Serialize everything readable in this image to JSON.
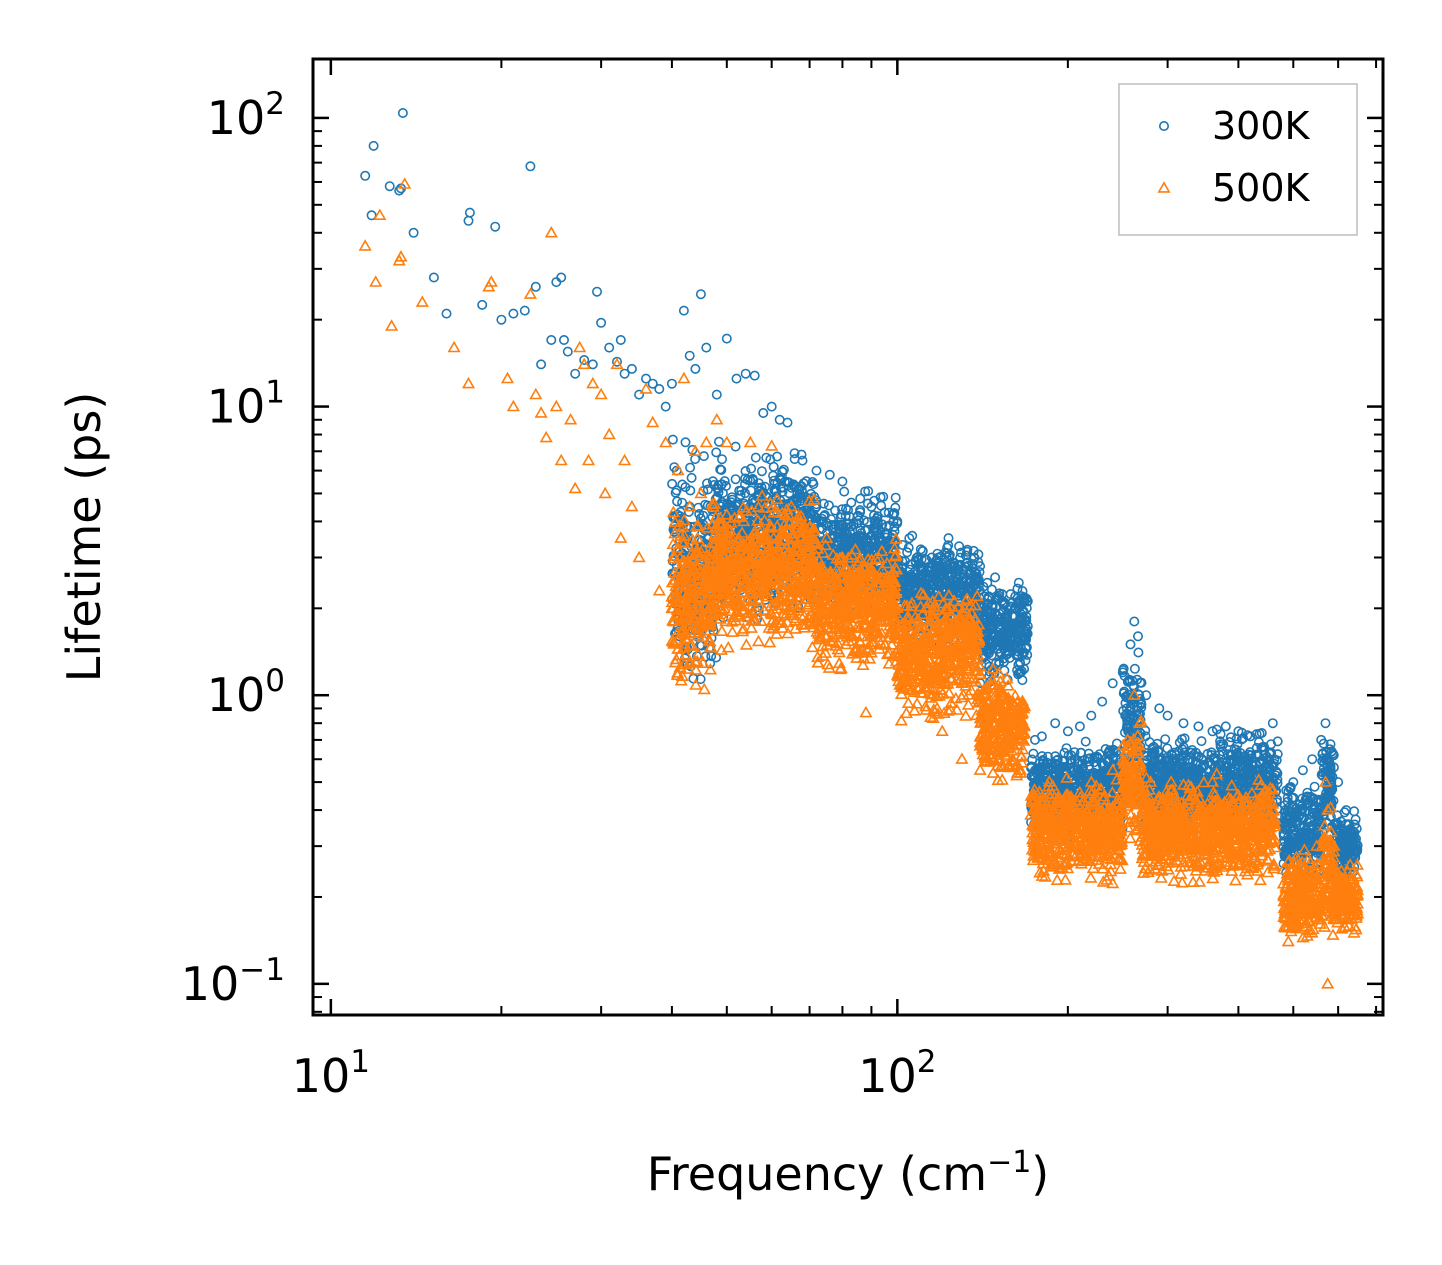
{
  "chart_data": {
    "type": "scatter",
    "title": "",
    "xlabel": "Frequency (cm",
    "xlabel_sup": "−1",
    "xlabel_suffix": ")",
    "ylabel": "Lifetime (ps)",
    "xscale": "log",
    "yscale": "log",
    "xlim": [
      9.3,
      720
    ],
    "ylim": [
      0.078,
      160
    ],
    "x_ticks": [
      {
        "value": 10,
        "base": "10",
        "exp": "1"
      },
      {
        "value": 100,
        "base": "10",
        "exp": "2"
      }
    ],
    "y_ticks": [
      {
        "value": 0.1,
        "base": "10",
        "exp": "−1"
      },
      {
        "value": 1,
        "base": "10",
        "exp": "0"
      },
      {
        "value": 10,
        "base": "10",
        "exp": "1"
      },
      {
        "value": 100,
        "base": "10",
        "exp": "2"
      }
    ],
    "legend_position": "top-right",
    "series": [
      {
        "name": "300K",
        "marker": "circle",
        "color": "#1f77b4",
        "points": [
          [
            11.5,
            63
          ],
          [
            11.9,
            80
          ],
          [
            11.8,
            46
          ],
          [
            12.7,
            58
          ],
          [
            13.2,
            56
          ],
          [
            13.4,
            104
          ],
          [
            13.3,
            57
          ],
          [
            14.0,
            40
          ],
          [
            15.2,
            28
          ],
          [
            16.0,
            21
          ],
          [
            17.5,
            44
          ],
          [
            17.6,
            47
          ],
          [
            18.5,
            22.5
          ],
          [
            19.5,
            42
          ],
          [
            20.0,
            20
          ],
          [
            21.0,
            21
          ],
          [
            22.0,
            21.5
          ],
          [
            22.5,
            68
          ],
          [
            23.0,
            26
          ],
          [
            23.5,
            14
          ],
          [
            24.5,
            17
          ],
          [
            25.0,
            27
          ],
          [
            25.5,
            28
          ],
          [
            25.8,
            17
          ],
          [
            26.2,
            15.5
          ],
          [
            27.0,
            13
          ],
          [
            28.0,
            14.5
          ],
          [
            29.0,
            14
          ],
          [
            29.5,
            25
          ],
          [
            30.0,
            19.5
          ],
          [
            31.0,
            16
          ],
          [
            32.0,
            14.3
          ],
          [
            32.5,
            17
          ],
          [
            33.0,
            13
          ],
          [
            34.0,
            13.5
          ],
          [
            35.0,
            11
          ],
          [
            36.0,
            12.5
          ],
          [
            37.0,
            12
          ],
          [
            38.0,
            11.5
          ],
          [
            39.0,
            10
          ],
          [
            40.0,
            12
          ],
          [
            42.0,
            21.5
          ],
          [
            43.0,
            15
          ],
          [
            44.0,
            13.5
          ],
          [
            45.0,
            24.5
          ],
          [
            46.0,
            16
          ],
          [
            48.0,
            11
          ],
          [
            50.0,
            17.2
          ],
          [
            52.0,
            12.5
          ],
          [
            54.0,
            13
          ],
          [
            56.0,
            12.8
          ],
          [
            58.0,
            9.5
          ],
          [
            60.0,
            10
          ],
          [
            62.0,
            9
          ],
          [
            64.0,
            8.8
          ],
          [
            68.0,
            6.5
          ],
          [
            72.0,
            6
          ],
          [
            76.0,
            5.8
          ],
          [
            80.0,
            5.5
          ],
          [
            86.0,
            4.8
          ],
          [
            90.0,
            4.5
          ],
          [
            95.0,
            4.3
          ],
          [
            100.0,
            4.0
          ],
          [
            105.0,
            3.5
          ],
          [
            110.0,
            3.2
          ],
          [
            115.0,
            3.0
          ],
          [
            120.0,
            2.8
          ],
          [
            125.0,
            2.6
          ],
          [
            130.0,
            2.5
          ],
          [
            135.0,
            2.7
          ],
          [
            140.0,
            2.8
          ],
          [
            145.0,
            2.2
          ],
          [
            150.0,
            1.8
          ],
          [
            155.0,
            1.6
          ],
          [
            160.0,
            1.5
          ],
          [
            165.0,
            1.2
          ],
          [
            175.0,
            0.7
          ],
          [
            180.0,
            0.72
          ],
          [
            190.0,
            0.8
          ],
          [
            200.0,
            0.75
          ],
          [
            210.0,
            0.78
          ],
          [
            220.0,
            0.85
          ],
          [
            230.0,
            0.95
          ],
          [
            240.0,
            1.1
          ],
          [
            250.0,
            1.2
          ],
          [
            258.0,
            1.5
          ],
          [
            262.0,
            1.8
          ],
          [
            266.0,
            1.6
          ],
          [
            275.0,
            1.0
          ],
          [
            290.0,
            0.9
          ],
          [
            300.0,
            0.85
          ],
          [
            320.0,
            0.8
          ],
          [
            340.0,
            0.78
          ],
          [
            360.0,
            0.75
          ],
          [
            380.0,
            0.78
          ],
          [
            400.0,
            0.75
          ],
          [
            420.0,
            0.72
          ],
          [
            440.0,
            0.74
          ],
          [
            460.0,
            0.8
          ],
          [
            500.0,
            0.5
          ],
          [
            520.0,
            0.55
          ],
          [
            540.0,
            0.6
          ],
          [
            560.0,
            0.7
          ],
          [
            570.0,
            0.8
          ],
          [
            580.0,
            0.65
          ],
          [
            600.0,
            0.5
          ],
          [
            620.0,
            0.4
          ],
          [
            640.0,
            0.32
          ]
        ],
        "bands": [
          {
            "x": [
              40,
              48
            ],
            "y": [
              0.9,
              9.0
            ]
          },
          {
            "x": [
              48,
              72
            ],
            "y": [
              1.6,
              8.0
            ]
          },
          {
            "x": [
              72,
              100
            ],
            "y": [
              1.7,
              5.5
            ]
          },
          {
            "x": [
              100,
              140
            ],
            "y": [
              1.4,
              3.8
            ]
          },
          {
            "x": [
              140,
              170
            ],
            "y": [
              1.0,
              2.8
            ]
          },
          {
            "x": [
              172,
              250
            ],
            "y": [
              0.3,
              0.75
            ]
          },
          {
            "x": [
              250,
              270
            ],
            "y": [
              0.4,
              1.6
            ]
          },
          {
            "x": [
              270,
              470
            ],
            "y": [
              0.3,
              0.8
            ]
          },
          {
            "x": [
              480,
              560
            ],
            "y": [
              0.2,
              0.58
            ]
          },
          {
            "x": [
              560,
              590
            ],
            "y": [
              0.3,
              0.8
            ]
          },
          {
            "x": [
              590,
              650
            ],
            "y": [
              0.22,
              0.42
            ]
          }
        ]
      },
      {
        "name": "500K",
        "marker": "triangle",
        "color": "#ff7f0e",
        "points": [
          [
            11.5,
            36
          ],
          [
            12.0,
            27
          ],
          [
            12.2,
            46
          ],
          [
            12.8,
            19
          ],
          [
            13.2,
            32
          ],
          [
            13.5,
            59
          ],
          [
            13.3,
            33
          ],
          [
            14.5,
            23
          ],
          [
            16.5,
            16
          ],
          [
            17.5,
            12
          ],
          [
            19.0,
            26
          ],
          [
            19.2,
            27
          ],
          [
            20.5,
            12.5
          ],
          [
            21.0,
            10
          ],
          [
            22.5,
            24.5
          ],
          [
            23.0,
            11
          ],
          [
            23.5,
            9.5
          ],
          [
            24.0,
            7.8
          ],
          [
            24.5,
            40
          ],
          [
            25.0,
            10
          ],
          [
            25.5,
            6.5
          ],
          [
            26.5,
            9
          ],
          [
            27.0,
            5.2
          ],
          [
            27.5,
            16
          ],
          [
            28.0,
            14
          ],
          [
            28.5,
            6.5
          ],
          [
            29.0,
            12
          ],
          [
            30.0,
            11
          ],
          [
            30.5,
            5
          ],
          [
            31.0,
            8
          ],
          [
            32.0,
            14
          ],
          [
            32.5,
            3.5
          ],
          [
            33.0,
            6.5
          ],
          [
            34.0,
            4.5
          ],
          [
            35.0,
            3.0
          ],
          [
            36.0,
            11.5
          ],
          [
            37.0,
            8.8
          ],
          [
            38.0,
            2.3
          ],
          [
            39.0,
            7.5
          ],
          [
            40.0,
            2.0
          ],
          [
            41.0,
            6.0
          ],
          [
            42.0,
            12.5
          ],
          [
            43.0,
            4.5
          ],
          [
            44.0,
            7
          ],
          [
            45.0,
            5
          ],
          [
            46.0,
            7.5
          ],
          [
            48.0,
            9
          ],
          [
            50.0,
            7.5
          ],
          [
            55.0,
            7.5
          ],
          [
            60.0,
            7.3
          ],
          [
            65.0,
            4.5
          ],
          [
            70.0,
            3.8
          ],
          [
            75.0,
            3.5
          ],
          [
            80.0,
            3.0
          ],
          [
            85.0,
            2.5
          ],
          [
            90.0,
            2.5
          ],
          [
            95.0,
            2.2
          ],
          [
            100.0,
            2.0
          ],
          [
            110.0,
            1.5
          ],
          [
            120.0,
            1.3
          ],
          [
            130.0,
            1.1
          ],
          [
            140.0,
            0.95
          ],
          [
            150.0,
            0.85
          ],
          [
            160.0,
            0.75
          ],
          [
            88.0,
            0.87
          ],
          [
            120.0,
            0.75
          ],
          [
            130.0,
            0.6
          ],
          [
            140.0,
            0.55
          ],
          [
            175.0,
            0.4
          ],
          [
            180.0,
            0.42
          ],
          [
            200.0,
            0.45
          ],
          [
            220.0,
            0.5
          ],
          [
            240.0,
            0.55
          ],
          [
            255.0,
            0.7
          ],
          [
            262.0,
            1.0
          ],
          [
            268.0,
            0.8
          ],
          [
            280.0,
            0.5
          ],
          [
            300.0,
            0.45
          ],
          [
            330.0,
            0.48
          ],
          [
            360.0,
            0.5
          ],
          [
            400.0,
            0.45
          ],
          [
            440.0,
            0.45
          ],
          [
            460.0,
            0.42
          ],
          [
            490.0,
            0.14
          ],
          [
            520.0,
            0.18
          ],
          [
            550.0,
            0.3
          ],
          [
            570.0,
            0.5
          ],
          [
            575.0,
            0.4
          ],
          [
            590.0,
            0.3
          ],
          [
            610.0,
            0.22
          ],
          [
            640.0,
            0.15
          ],
          [
            575.0,
            0.1
          ]
        ],
        "bands": [
          {
            "x": [
              40,
              47
            ],
            "y": [
              0.9,
              5.0
            ]
          },
          {
            "x": [
              47,
              72
            ],
            "y": [
              1.3,
              5.5
            ]
          },
          {
            "x": [
              72,
              100
            ],
            "y": [
              1.1,
              3.8
            ]
          },
          {
            "x": [
              100,
              140
            ],
            "y": [
              0.75,
              2.6
            ]
          },
          {
            "x": [
              140,
              168
            ],
            "y": [
              0.45,
              1.3
            ]
          },
          {
            "x": [
              172,
              250
            ],
            "y": [
              0.21,
              0.55
            ]
          },
          {
            "x": [
              250,
              270
            ],
            "y": [
              0.28,
              0.9
            ]
          },
          {
            "x": [
              270,
              465
            ],
            "y": [
              0.21,
              0.55
            ]
          },
          {
            "x": [
              480,
              560
            ],
            "y": [
              0.13,
              0.3
            ]
          },
          {
            "x": [
              560,
              590
            ],
            "y": [
              0.12,
              0.48
            ]
          },
          {
            "x": [
              590,
              650
            ],
            "y": [
              0.14,
              0.28
            ]
          }
        ]
      }
    ]
  }
}
